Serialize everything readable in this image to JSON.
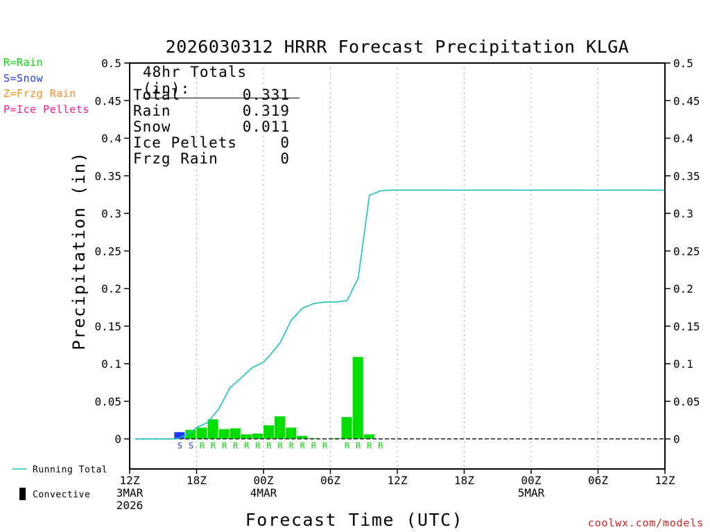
{
  "chart_data": {
    "type": "bar",
    "title": "2026030312 HRRR Forecast Precipitation KLGA",
    "xlabel": "Forecast Time (UTC)",
    "ylabel": "Precipitation (in)",
    "ylim": [
      -0.04,
      0.5
    ],
    "yticks": [
      "0",
      "0.05",
      "0.1",
      "0.15",
      "0.2",
      "0.25",
      "0.3",
      "0.35",
      "0.4",
      "0.45",
      "0.5"
    ],
    "xrange_hours": [
      0,
      48
    ],
    "xticks": [
      {
        "hour": 0,
        "lines": [
          "12Z",
          "3MAR",
          "2026"
        ]
      },
      {
        "hour": 6,
        "lines": [
          "18Z"
        ]
      },
      {
        "hour": 12,
        "lines": [
          "00Z",
          "4MAR"
        ]
      },
      {
        "hour": 18,
        "lines": [
          "06Z"
        ]
      },
      {
        "hour": 24,
        "lines": [
          "12Z"
        ]
      },
      {
        "hour": 30,
        "lines": [
          "18Z"
        ]
      },
      {
        "hour": 36,
        "lines": [
          "00Z",
          "5MAR"
        ]
      },
      {
        "hour": 42,
        "lines": [
          "06Z"
        ]
      },
      {
        "hour": 48,
        "lines": [
          "12Z"
        ]
      }
    ],
    "grid": "vertical dotted every 6 hours",
    "colors": {
      "rain": "#00dd00",
      "snow": "#1e3cff",
      "frzg": "#ff8c1a",
      "ice": "#ff1493",
      "running_total": "#18c0c0"
    },
    "hourly_precip": [
      {
        "hour": 5,
        "value": 0.009,
        "ptype": "S"
      },
      {
        "hour": 6,
        "value": 0.012,
        "ptype": "R"
      },
      {
        "hour": 7,
        "value": 0.015,
        "ptype": "R"
      },
      {
        "hour": 8,
        "value": 0.026,
        "ptype": "R"
      },
      {
        "hour": 9,
        "value": 0.013,
        "ptype": "R"
      },
      {
        "hour": 10,
        "value": 0.014,
        "ptype": "R"
      },
      {
        "hour": 11,
        "value": 0.006,
        "ptype": "R"
      },
      {
        "hour": 12,
        "value": 0.007,
        "ptype": "R"
      },
      {
        "hour": 13,
        "value": 0.018,
        "ptype": "R"
      },
      {
        "hour": 14,
        "value": 0.03,
        "ptype": "R"
      },
      {
        "hour": 15,
        "value": 0.015,
        "ptype": "R"
      },
      {
        "hour": 16,
        "value": 0.004,
        "ptype": "R"
      },
      {
        "hour": 17,
        "value": 0.001,
        "ptype": "R"
      },
      {
        "hour": 19,
        "value": 0.001,
        "ptype": ""
      },
      {
        "hour": 20,
        "value": 0.029,
        "ptype": "R"
      },
      {
        "hour": 21,
        "value": 0.109,
        "ptype": "R"
      },
      {
        "hour": 22,
        "value": 0.006,
        "ptype": "R"
      }
    ],
    "ptype_labels": [
      {
        "hour": 4,
        "label": "S"
      },
      {
        "hour": 5,
        "label": "S"
      },
      {
        "hour": 6,
        "label": "R"
      },
      {
        "hour": 7,
        "label": "R"
      },
      {
        "hour": 8,
        "label": "R"
      },
      {
        "hour": 9,
        "label": "R"
      },
      {
        "hour": 10,
        "label": "R"
      },
      {
        "hour": 11,
        "label": "R"
      },
      {
        "hour": 12,
        "label": "R"
      },
      {
        "hour": 13,
        "label": "R"
      },
      {
        "hour": 14,
        "label": "R"
      },
      {
        "hour": 15,
        "label": "R"
      },
      {
        "hour": 16,
        "label": "R"
      },
      {
        "hour": 17,
        "label": "R"
      },
      {
        "hour": 19,
        "label": "R"
      },
      {
        "hour": 20,
        "label": "R"
      },
      {
        "hour": 21,
        "label": "R"
      },
      {
        "hour": 22,
        "label": "R"
      }
    ],
    "running_total": [
      {
        "hour": 0.5,
        "value": 0.0
      },
      {
        "hour": 3.5,
        "value": 0.0
      },
      {
        "hour": 4,
        "value": 0.0
      },
      {
        "hour": 4.5,
        "value": 0.001
      },
      {
        "hour": 5.5,
        "value": 0.009
      },
      {
        "hour": 6,
        "value": 0.015
      },
      {
        "hour": 7,
        "value": 0.022
      },
      {
        "hour": 8,
        "value": 0.04
      },
      {
        "hour": 9,
        "value": 0.068
      },
      {
        "hour": 10,
        "value": 0.081
      },
      {
        "hour": 11,
        "value": 0.095
      },
      {
        "hour": 12,
        "value": 0.102
      },
      {
        "hour": 12.5,
        "value": 0.11
      },
      {
        "hour": 13.5,
        "value": 0.128
      },
      {
        "hour": 14.5,
        "value": 0.158
      },
      {
        "hour": 15.5,
        "value": 0.174
      },
      {
        "hour": 16.5,
        "value": 0.18
      },
      {
        "hour": 17.5,
        "value": 0.182
      },
      {
        "hour": 18.5,
        "value": 0.182
      },
      {
        "hour": 19.5,
        "value": 0.184
      },
      {
        "hour": 20.5,
        "value": 0.214
      },
      {
        "hour": 21.5,
        "value": 0.324
      },
      {
        "hour": 22.5,
        "value": 0.33
      },
      {
        "hour": 23.5,
        "value": 0.331
      },
      {
        "hour": 48,
        "value": 0.331
      }
    ]
  },
  "legend_types": [
    {
      "text": "R=Rain",
      "color": "#00dd00"
    },
    {
      "text": "S=Snow",
      "color": "#1e3cff"
    },
    {
      "text": "Z=Frzg Rain",
      "color": "#ff8c1a"
    },
    {
      "text": "P=Ice Pellets",
      "color": "#ff1493"
    }
  ],
  "legend_bottom": {
    "running_total": "Running Total",
    "convective": "Convective"
  },
  "totals": {
    "header": "48hr Totals (in):",
    "rows": [
      {
        "label": "Total",
        "value": "0.331"
      },
      {
        "label": "Rain",
        "value": "0.319"
      },
      {
        "label": "Snow",
        "value": "0.011"
      },
      {
        "label": "Ice Pellets",
        "value": "0"
      },
      {
        "label": "Frzg Rain",
        "value": "0"
      }
    ]
  },
  "credit": "coolwx.com/models"
}
